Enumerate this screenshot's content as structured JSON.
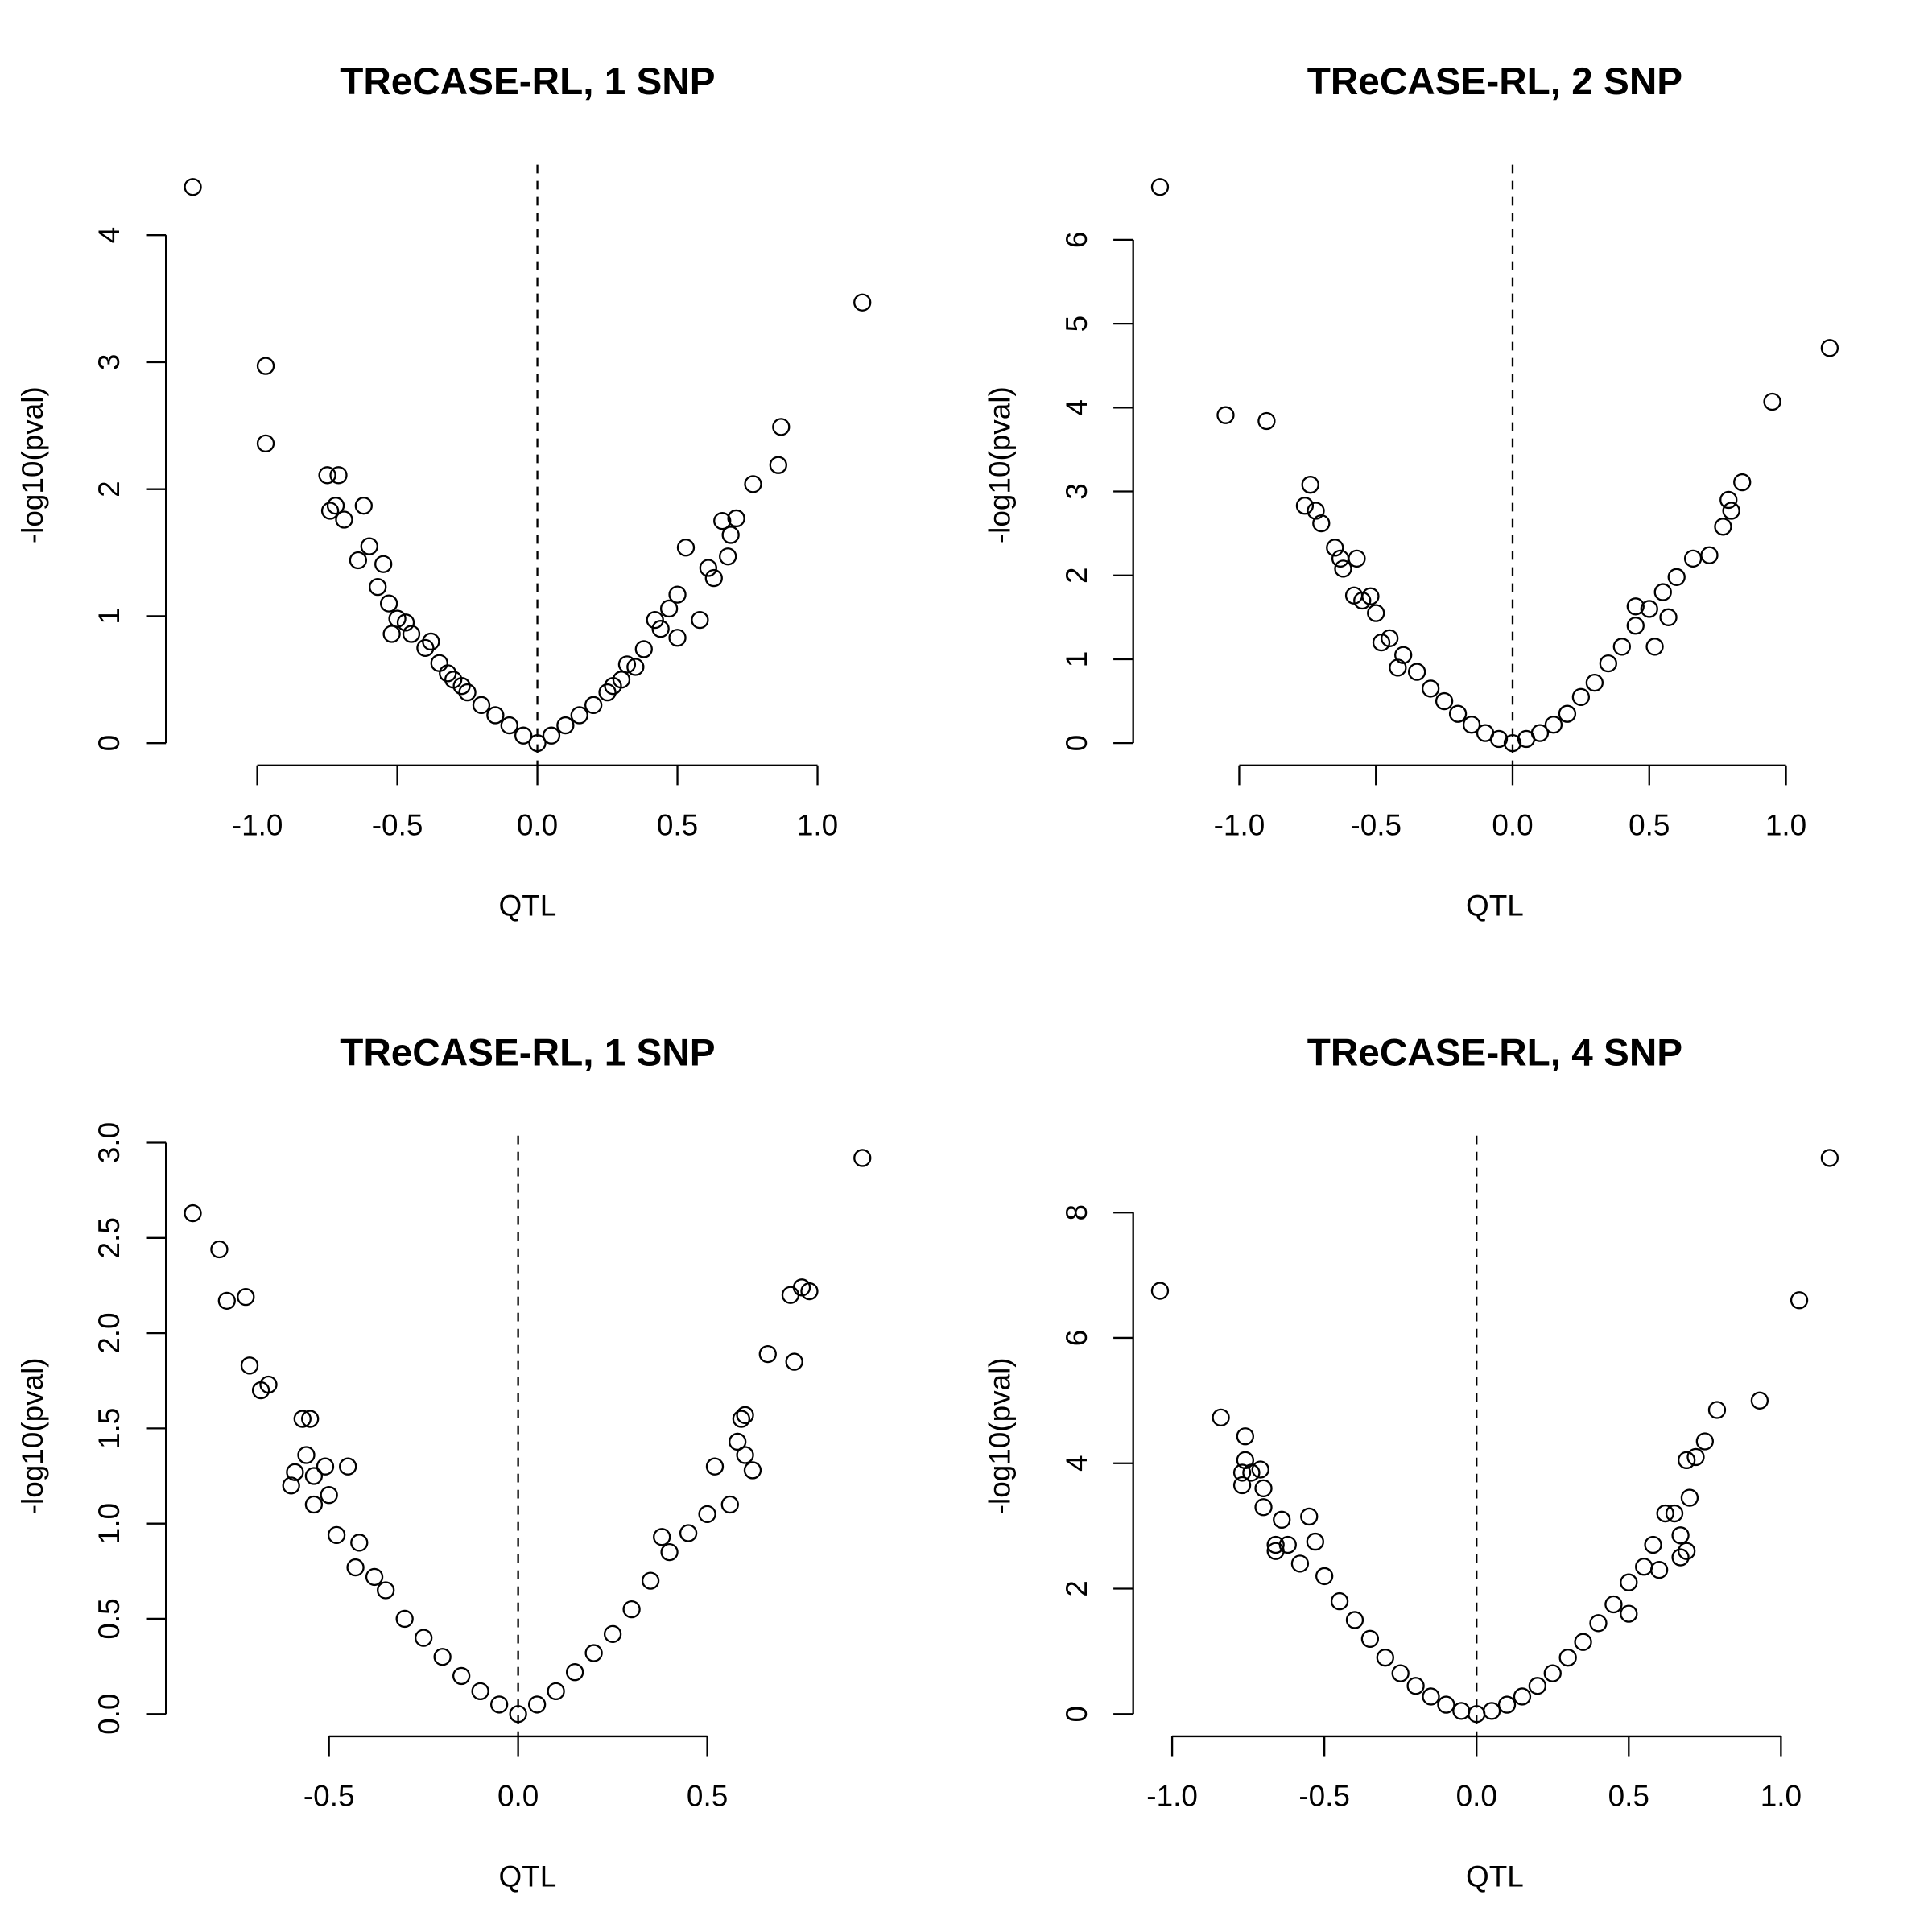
{
  "chart_data": [
    {
      "type": "scatter",
      "title": "TReCASE-RL, 1 SNP",
      "x_label": "QTL",
      "y_label": "-log10(pval)",
      "color": "#000000",
      "vline": 0,
      "xlim": [
        -1.326,
        1.256
      ],
      "ylim": [
        -0.175,
        4.555
      ],
      "xticks": [
        {
          "value": -1,
          "label": "-1.0"
        },
        {
          "value": -0.5,
          "label": "-0.5"
        },
        {
          "value": 0,
          "label": "0.0"
        },
        {
          "value": 0.5,
          "label": "0.5"
        },
        {
          "value": 1,
          "label": "1.0"
        }
      ],
      "yticks": [
        0,
        1,
        2,
        3,
        4
      ],
      "x": [
        -1.23,
        1.16,
        -0.97,
        -0.97,
        0.87,
        0.86,
        0.77,
        -0.75,
        -0.71,
        -0.74,
        -0.72,
        -0.62,
        -0.69,
        -0.6,
        -0.64,
        0.66,
        0.71,
        0.69,
        0.53,
        0.61,
        0.63,
        0.68,
        -0.55,
        -0.57,
        -0.53,
        -0.5,
        -0.52,
        0.5,
        0.47,
        0.42,
        0.5,
        0.58,
        -0.45,
        -0.4,
        -0.35,
        -0.3,
        -0.25,
        -0.2,
        -0.15,
        -0.1,
        -0.05,
        0,
        0.05,
        0.1,
        0.15,
        0.2,
        0.25,
        0.3,
        0.35,
        0.38,
        -0.38,
        -0.32,
        -0.27,
        0.32,
        0.27,
        -0.47,
        0.44
      ],
      "values": [
        4.38,
        3.47,
        2.97,
        2.36,
        2.49,
        2.19,
        2.04,
        2.11,
        2.11,
        1.83,
        1.87,
        1.87,
        1.76,
        1.55,
        1.44,
        1.75,
        1.77,
        1.64,
        1.54,
        1.38,
        1.3,
        1.47,
        1.41,
        1.23,
        1.1,
        0.98,
        0.86,
        1.17,
        1.06,
        0.97,
        0.83,
        0.97,
        0.86,
        0.75,
        0.63,
        0.5,
        0.4,
        0.3,
        0.22,
        0.14,
        0.06,
        0,
        0.06,
        0.14,
        0.22,
        0.3,
        0.4,
        0.5,
        0.6,
        0.74,
        0.8,
        0.55,
        0.45,
        0.62,
        0.45,
        0.95,
        0.9
      ]
    },
    {
      "type": "scatter",
      "title": "TReCASE-RL, 2 SNP",
      "x_label": "QTL",
      "y_label": "-log10(pval)",
      "color": "#000000",
      "vline": 0,
      "xlim": [
        -1.388,
        1.258
      ],
      "ylim": [
        -0.265,
        6.895
      ],
      "xticks": [
        {
          "value": -1,
          "label": "-1.0"
        },
        {
          "value": -0.5,
          "label": "-0.5"
        },
        {
          "value": 0,
          "label": "0.0"
        },
        {
          "value": 0.5,
          "label": "0.5"
        },
        {
          "value": 1,
          "label": "1.0"
        }
      ],
      "yticks": [
        0,
        1,
        2,
        3,
        4,
        5,
        6
      ],
      "x": [
        -1.29,
        1.16,
        -1.05,
        -0.9,
        0.95,
        0.84,
        0.79,
        0.8,
        0.77,
        0.72,
        0.66,
        -0.74,
        -0.76,
        -0.72,
        -0.7,
        -0.65,
        -0.63,
        -0.62,
        -0.57,
        -0.58,
        -0.55,
        -0.5,
        -0.45,
        -0.4,
        -0.35,
        -0.3,
        -0.25,
        -0.2,
        -0.15,
        -0.1,
        -0.05,
        0,
        0.05,
        0.1,
        0.15,
        0.2,
        0.25,
        0.3,
        0.35,
        0.4,
        0.45,
        0.5,
        0.55,
        0.6,
        0.57,
        0.45,
        0.52,
        -0.52,
        -0.48,
        -0.42
      ],
      "values": [
        6.63,
        4.71,
        3.91,
        3.84,
        4.07,
        3.11,
        2.9,
        2.77,
        2.58,
        2.24,
        2.2,
        3.08,
        2.83,
        2.77,
        2.62,
        2.33,
        2.2,
        2.08,
        2.2,
        1.76,
        1.7,
        1.55,
        1.25,
        1.05,
        0.85,
        0.65,
        0.5,
        0.35,
        0.22,
        0.12,
        0.05,
        0,
        0.05,
        0.12,
        0.22,
        0.35,
        0.55,
        0.72,
        0.95,
        1.15,
        1.4,
        1.6,
        1.8,
        1.98,
        1.5,
        1.63,
        1.15,
        1.75,
        1.2,
        0.9
      ]
    },
    {
      "type": "scatter",
      "title": "TReCASE-RL, 1 SNP",
      "x_label": "QTL",
      "y_label": "-log10(pval)",
      "color": "#000000",
      "vline": 0,
      "xlim": [
        -0.931,
        0.981
      ],
      "ylim": [
        -0.117,
        3.037
      ],
      "xticks": [
        {
          "value": -0.5,
          "label": "-0.5"
        },
        {
          "value": 0,
          "label": "0.0"
        },
        {
          "value": 0.5,
          "label": "0.5"
        }
      ],
      "yticks": [
        {
          "value": 0,
          "label": "0.0"
        },
        0.5,
        {
          "value": 1,
          "label": "1.0"
        },
        1.5,
        {
          "value": 2,
          "label": "2.0"
        },
        2.5,
        {
          "value": 3,
          "label": "3.0"
        }
      ],
      "x": [
        -0.86,
        0.91,
        -0.79,
        -0.77,
        -0.72,
        -0.71,
        -0.68,
        -0.66,
        0.72,
        0.75,
        0.77,
        0.66,
        0.73,
        0.6,
        0.59,
        0.58,
        0.6,
        0.62,
        0.52,
        0.56,
        -0.57,
        -0.55,
        -0.56,
        -0.51,
        -0.6,
        -0.59,
        -0.54,
        -0.54,
        -0.45,
        -0.5,
        -0.48,
        -0.42,
        -0.43,
        -0.35,
        -0.3,
        -0.25,
        -0.2,
        -0.15,
        -0.1,
        -0.05,
        0,
        0.05,
        0.1,
        0.15,
        0.2,
        0.25,
        0.3,
        0.35,
        0.4,
        0.45,
        0.5,
        0.38,
        -0.38
      ],
      "values": [
        2.63,
        2.92,
        2.44,
        2.17,
        2.19,
        1.83,
        1.7,
        1.73,
        2.2,
        2.24,
        2.22,
        1.89,
        1.85,
        1.57,
        1.55,
        1.43,
        1.36,
        1.28,
        1.3,
        1.1,
        1.55,
        1.55,
        1.36,
        1.3,
        1.2,
        1.27,
        1.25,
        1.1,
        1.3,
        1.15,
        0.94,
        0.9,
        0.77,
        0.65,
        0.5,
        0.4,
        0.3,
        0.2,
        0.12,
        0.05,
        0,
        0.05,
        0.12,
        0.22,
        0.32,
        0.42,
        0.55,
        0.7,
        0.85,
        0.95,
        1.05,
        0.93,
        0.72
      ]
    },
    {
      "type": "scatter",
      "title": "TReCASE-RL, 4 SNP",
      "x_label": "QTL",
      "y_label": "-log10(pval)",
      "color": "#000000",
      "vline": 0,
      "xlim": [
        -1.128,
        1.248
      ],
      "ylim": [
        -0.355,
        9.225
      ],
      "xticks": [
        {
          "value": -1,
          "label": "-1.0"
        },
        {
          "value": -0.5,
          "label": "-0.5"
        },
        {
          "value": 0,
          "label": "0.0"
        },
        {
          "value": 0.5,
          "label": "0.5"
        },
        {
          "value": 1,
          "label": "1.0"
        }
      ],
      "yticks": [
        0,
        2,
        4,
        6,
        8
      ],
      "x": [
        -1.04,
        1.16,
        1.06,
        0.93,
        0.79,
        0.75,
        0.72,
        0.69,
        0.7,
        0.65,
        0.62,
        0.67,
        0.69,
        0.67,
        0.58,
        -0.84,
        -0.76,
        -0.76,
        -0.77,
        -0.71,
        -0.77,
        -0.74,
        -0.7,
        -0.7,
        -0.64,
        -0.55,
        -0.66,
        -0.62,
        -0.66,
        -0.53,
        -0.5,
        -0.45,
        -0.4,
        -0.35,
        -0.3,
        -0.25,
        -0.2,
        -0.15,
        -0.1,
        -0.05,
        0,
        0.05,
        0.1,
        0.15,
        0.2,
        0.25,
        0.3,
        0.35,
        0.4,
        0.45,
        0.5,
        0.55,
        0.5,
        0.6,
        -0.58
      ],
      "values": [
        6.75,
        8.87,
        6.6,
        5.0,
        4.85,
        4.35,
        4.1,
        4.05,
        3.45,
        3.2,
        3.2,
        2.85,
        2.6,
        2.5,
        2.7,
        4.73,
        4.43,
        4.05,
        3.85,
        3.9,
        3.65,
        3.85,
        3.6,
        3.3,
        3.1,
        3.15,
        2.7,
        2.7,
        2.6,
        2.75,
        2.2,
        1.8,
        1.5,
        1.2,
        0.9,
        0.65,
        0.45,
        0.28,
        0.15,
        0.05,
        0,
        0.05,
        0.15,
        0.28,
        0.45,
        0.65,
        0.9,
        1.15,
        1.45,
        1.75,
        2.1,
        2.35,
        1.6,
        2.3,
        2.4
      ]
    }
  ]
}
